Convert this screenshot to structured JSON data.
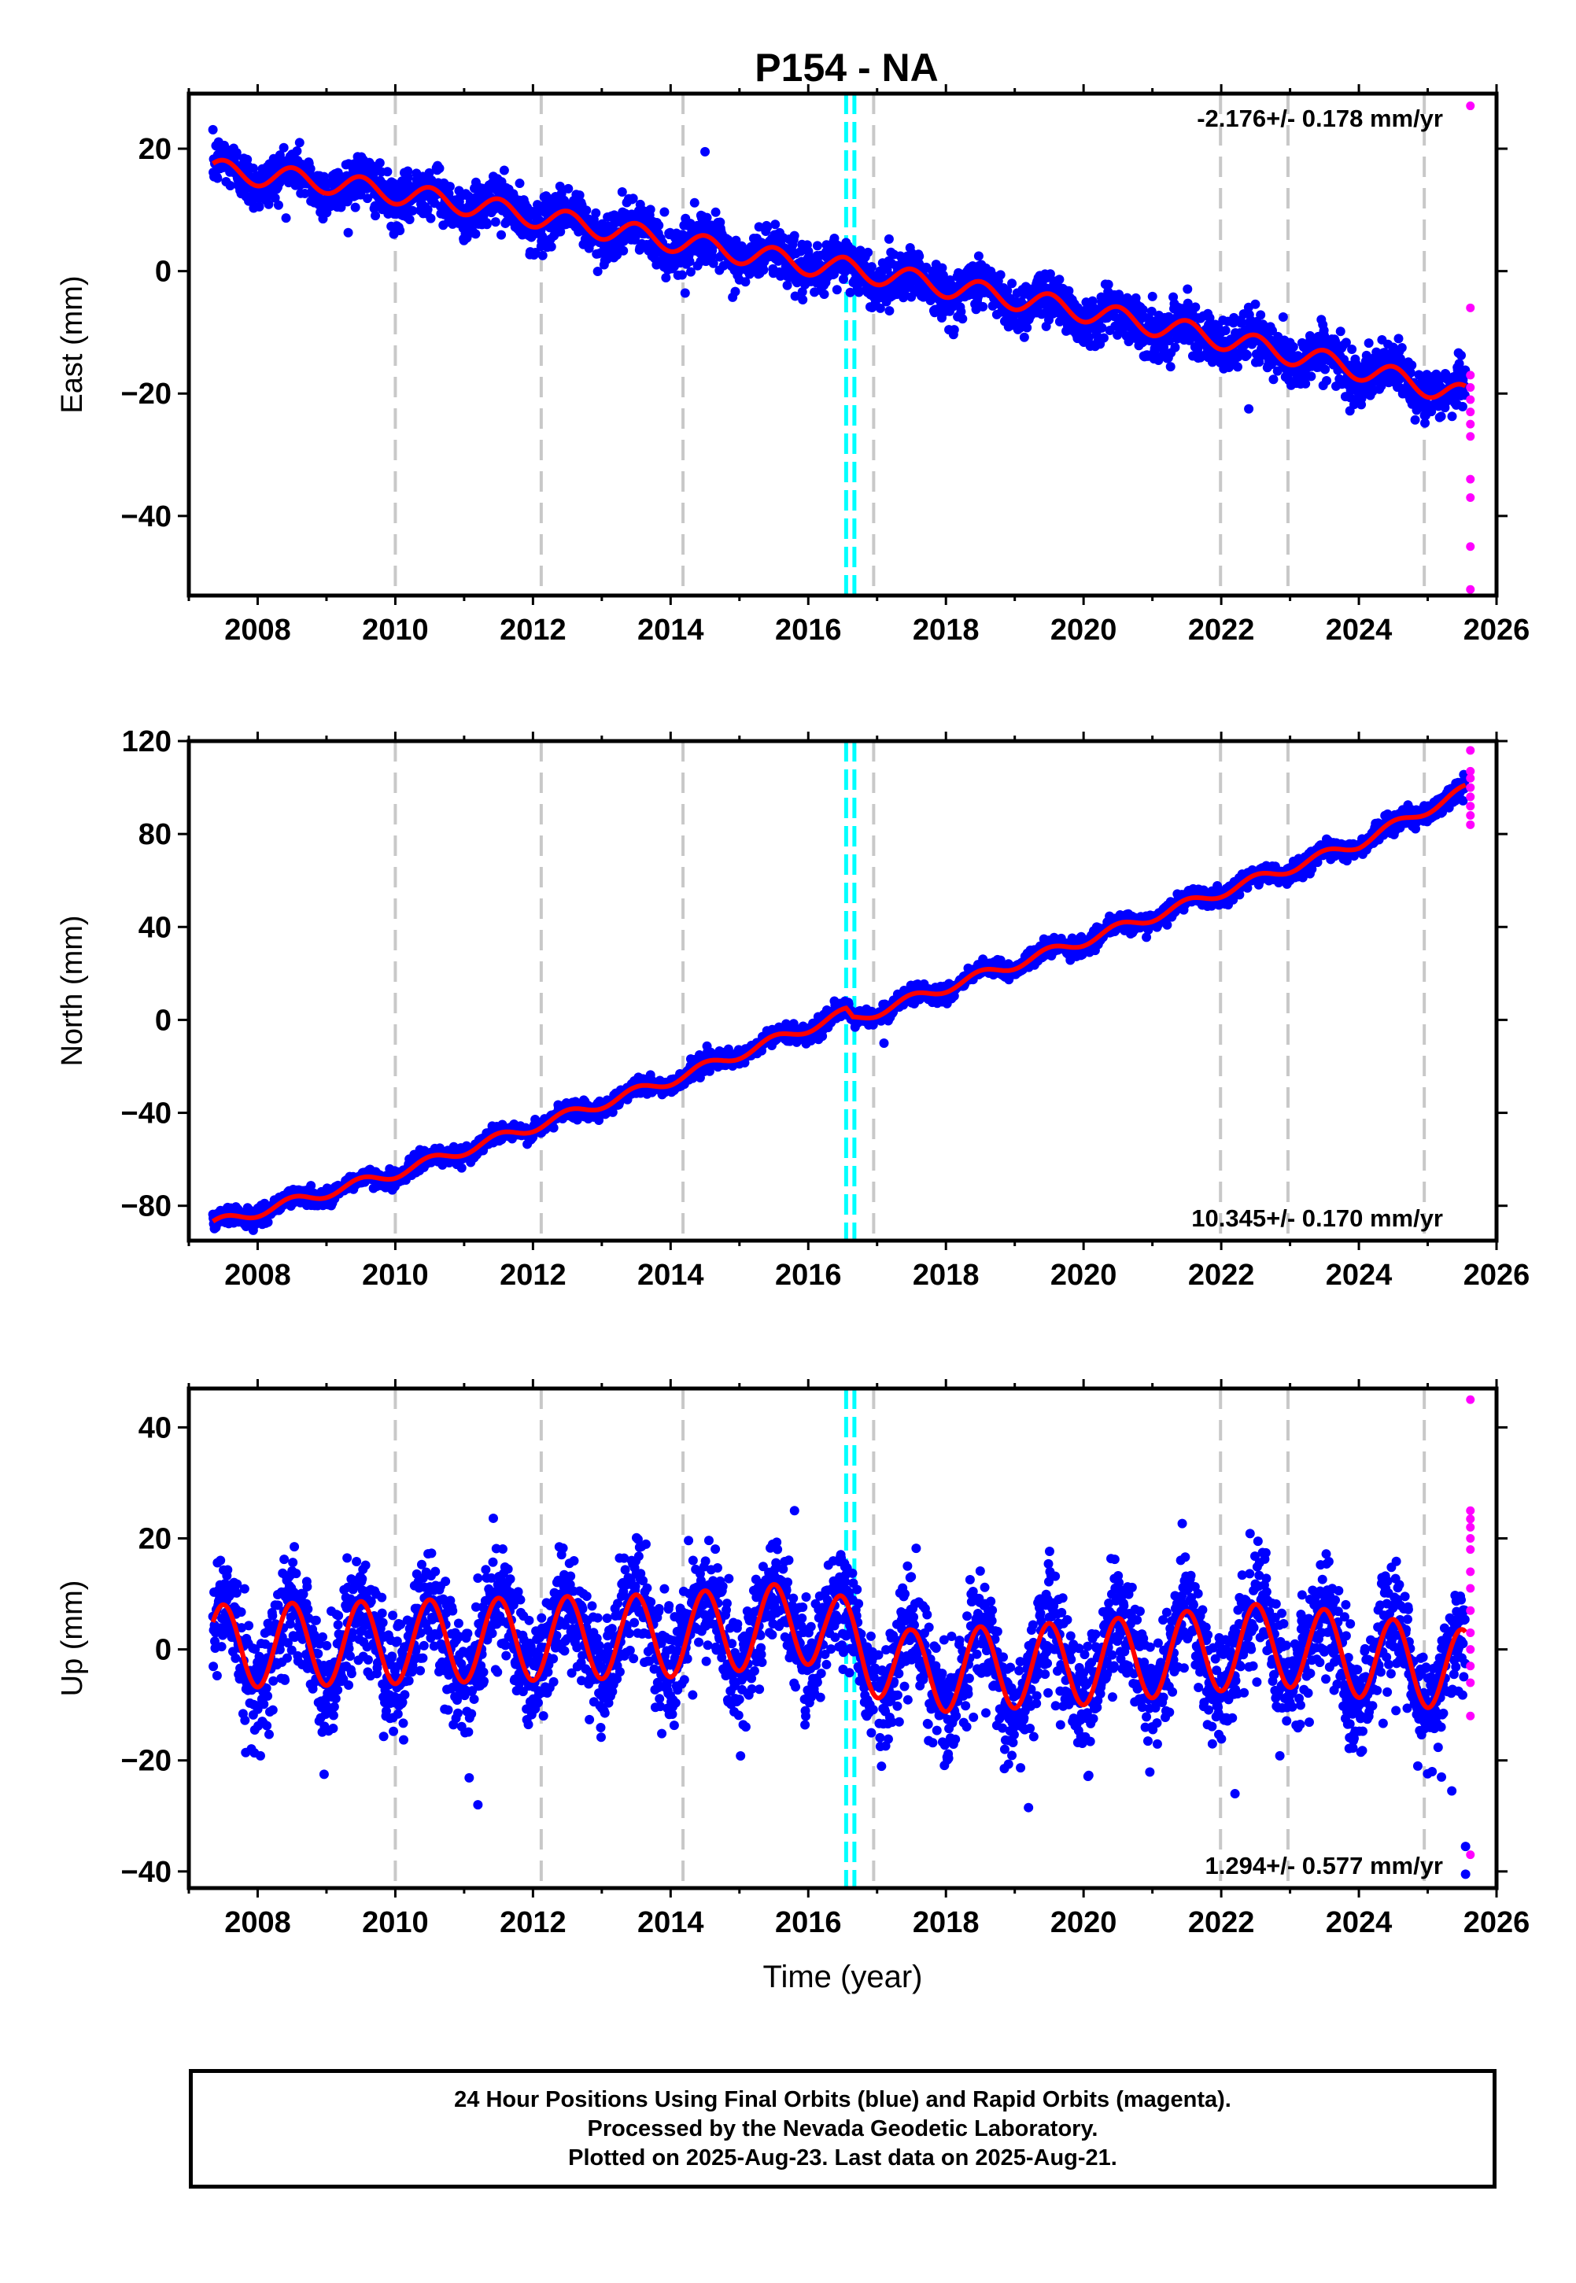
{
  "colors": {
    "final_orbits": "#0000ff",
    "rapid_orbits": "#ff00ff",
    "model": "#ff0000",
    "gray_lines": "#c8c8c8",
    "cyan_lines": "#00ffff"
  },
  "chart_data": [
    {
      "type": "scatter",
      "panel": "east",
      "title": "P154 - NA",
      "ylabel": "East (mm)",
      "xlabel": "",
      "xlim": [
        2007.0,
        2026.0
      ],
      "ylim": [
        -53,
        29
      ],
      "yticks": [
        20,
        0,
        -20,
        -40
      ],
      "ytick_labels": [
        "20",
        "0",
        "−20",
        "−40"
      ],
      "xticks": [
        2008,
        2010,
        2012,
        2014,
        2016,
        2018,
        2020,
        2022,
        2024,
        2026
      ],
      "xtick_labels": [
        "2008",
        "2010",
        "2012",
        "2014",
        "2016",
        "2018",
        "2020",
        "2022",
        "2024",
        "2026"
      ],
      "rate_label": "-2.176+/- 0.178 mm/yr",
      "rate_position": "top-right",
      "start": 2007.35,
      "end": 2025.55,
      "trend": [
        {
          "x": 2007.35,
          "y": 16.5
        },
        {
          "x": 2009.0,
          "y": 14.5
        },
        {
          "x": 2011.0,
          "y": 11.0
        },
        {
          "x": 2013.0,
          "y": 7.0
        },
        {
          "x": 2015.0,
          "y": 3.0
        },
        {
          "x": 2016.35,
          "y": 0.5
        },
        {
          "x": 2016.55,
          "y": 0.5
        },
        {
          "x": 2018.0,
          "y": -2.5
        },
        {
          "x": 2020.0,
          "y": -6.5
        },
        {
          "x": 2022.0,
          "y": -11.0
        },
        {
          "x": 2024.0,
          "y": -16.0
        },
        {
          "x": 2024.9,
          "y": -18.5
        },
        {
          "x": 2025.55,
          "y": -20.5
        }
      ],
      "seasonal_amplitude": 1.8,
      "scatter": 2.0,
      "outliers": [
        {
          "x": 2014.5,
          "y": 19.5
        },
        {
          "x": 2022.9,
          "y": -7.5
        },
        {
          "x": 2022.4,
          "y": -22.5
        }
      ],
      "rapid_points": [
        {
          "x": 2025.62,
          "y": 27
        },
        {
          "x": 2025.62,
          "y": -6
        },
        {
          "x": 2025.62,
          "y": -17
        },
        {
          "x": 2025.62,
          "y": -19
        },
        {
          "x": 2025.62,
          "y": -21
        },
        {
          "x": 2025.62,
          "y": -23
        },
        {
          "x": 2025.62,
          "y": -25
        },
        {
          "x": 2025.62,
          "y": -27
        },
        {
          "x": 2025.62,
          "y": -34
        },
        {
          "x": 2025.62,
          "y": -37
        },
        {
          "x": 2025.62,
          "y": -45
        },
        {
          "x": 2025.62,
          "y": -52
        }
      ],
      "gray_lines": [
        2010.0,
        2012.12,
        2014.18,
        2016.95,
        2021.99,
        2022.97,
        2024.95
      ],
      "cyan_lines": [
        2016.55,
        2016.67
      ]
    },
    {
      "type": "scatter",
      "panel": "north",
      "title": "",
      "ylabel": "North (mm)",
      "xlabel": "",
      "xlim": [
        2007.0,
        2026.0
      ],
      "ylim": [
        -95,
        120
      ],
      "yticks": [
        120,
        80,
        40,
        0,
        -40,
        -80
      ],
      "ytick_labels": [
        "120",
        "80",
        "40",
        "0",
        "−40",
        "−80"
      ],
      "xticks": [
        2008,
        2010,
        2012,
        2014,
        2016,
        2018,
        2020,
        2022,
        2024,
        2026
      ],
      "xtick_labels": [
        "2008",
        "2010",
        "2012",
        "2014",
        "2016",
        "2018",
        "2020",
        "2022",
        "2024",
        "2026"
      ],
      "rate_label": "10.345+/- 0.170 mm/yr",
      "rate_position": "bottom-right",
      "start": 2007.35,
      "end": 2025.55,
      "trend": [
        {
          "x": 2007.35,
          "y": -88.0
        },
        {
          "x": 2010.0,
          "y": -66.0
        },
        {
          "x": 2012.0,
          "y": -46.0
        },
        {
          "x": 2014.0,
          "y": -26.0
        },
        {
          "x": 2016.55,
          "y": 3.0
        },
        {
          "x": 2016.65,
          "y": 0.0
        },
        {
          "x": 2018.0,
          "y": 14.0
        },
        {
          "x": 2020.0,
          "y": 34.0
        },
        {
          "x": 2022.0,
          "y": 55.0
        },
        {
          "x": 2024.0,
          "y": 76.0
        },
        {
          "x": 2025.55,
          "y": 99.0
        }
      ],
      "seasonal_amplitude": 2.2,
      "scatter": 1.8,
      "outliers": [
        {
          "x": 2017.1,
          "y": -10.0
        }
      ],
      "rapid_points": [
        {
          "x": 2025.62,
          "y": 116
        },
        {
          "x": 2025.62,
          "y": 107
        },
        {
          "x": 2025.62,
          "y": 104
        },
        {
          "x": 2025.62,
          "y": 100
        },
        {
          "x": 2025.62,
          "y": 96
        },
        {
          "x": 2025.62,
          "y": 92
        },
        {
          "x": 2025.62,
          "y": 88
        },
        {
          "x": 2025.62,
          "y": 84
        }
      ],
      "gray_lines": [
        2010.0,
        2012.12,
        2014.18,
        2016.95,
        2021.99,
        2022.97,
        2024.95
      ],
      "cyan_lines": [
        2016.55,
        2016.67
      ]
    },
    {
      "type": "scatter",
      "panel": "up",
      "title": "",
      "ylabel": "Up (mm)",
      "xlabel": "Time (year)",
      "xlim": [
        2007.0,
        2026.0
      ],
      "ylim": [
        -43,
        47
      ],
      "yticks": [
        40,
        20,
        0,
        -20,
        -40
      ],
      "ytick_labels": [
        "40",
        "20",
        "0",
        "−20",
        "−40"
      ],
      "xticks": [
        2008,
        2010,
        2012,
        2014,
        2016,
        2018,
        2020,
        2022,
        2024,
        2026
      ],
      "xtick_labels": [
        "2008",
        "2010",
        "2012",
        "2014",
        "2016",
        "2018",
        "2020",
        "2022",
        "2024",
        "2026"
      ],
      "rate_label": "1.294+/- 0.577 mm/yr",
      "rate_position": "bottom-right",
      "start": 2007.35,
      "end": 2025.55,
      "trend": [
        {
          "x": 2007.35,
          "y": 0.5
        },
        {
          "x": 2014.0,
          "y": 2.5
        },
        {
          "x": 2016.2,
          "y": 5.0
        },
        {
          "x": 2016.6,
          "y": 1.0
        },
        {
          "x": 2017.5,
          "y": -4.0
        },
        {
          "x": 2020.0,
          "y": -2.5
        },
        {
          "x": 2022.8,
          "y": 1.0
        },
        {
          "x": 2025.55,
          "y": -4.0
        }
      ],
      "seasonal_amplitude": 7.5,
      "scatter": 5.0,
      "outliers": [
        {
          "x": 2011.2,
          "y": -28.0
        },
        {
          "x": 2019.2,
          "y": -28.5
        },
        {
          "x": 2022.2,
          "y": -26.0
        },
        {
          "x": 2025.2,
          "y": -23.0
        },
        {
          "x": 2025.35,
          "y": -25.5
        },
        {
          "x": 2025.55,
          "y": -35.5
        },
        {
          "x": 2025.55,
          "y": -40.5
        },
        {
          "x": 2015.8,
          "y": 25.0
        }
      ],
      "rapid_points": [
        {
          "x": 2025.62,
          "y": 45
        },
        {
          "x": 2025.62,
          "y": 25
        },
        {
          "x": 2025.62,
          "y": 23.5
        },
        {
          "x": 2025.62,
          "y": 22
        },
        {
          "x": 2025.62,
          "y": 20
        },
        {
          "x": 2025.62,
          "y": 18
        },
        {
          "x": 2025.62,
          "y": 14
        },
        {
          "x": 2025.62,
          "y": 11
        },
        {
          "x": 2025.62,
          "y": 7
        },
        {
          "x": 2025.62,
          "y": 3
        },
        {
          "x": 2025.62,
          "y": 0
        },
        {
          "x": 2025.62,
          "y": -3
        },
        {
          "x": 2025.62,
          "y": -6
        },
        {
          "x": 2025.62,
          "y": -12
        },
        {
          "x": 2025.62,
          "y": -37
        }
      ],
      "gray_lines": [
        2010.0,
        2012.12,
        2014.18,
        2016.95,
        2021.99,
        2022.97,
        2024.95
      ],
      "cyan_lines": [
        2016.55,
        2016.67
      ]
    }
  ],
  "footer": {
    "line1": "24 Hour Positions Using Final Orbits (blue) and Rapid Orbits (magenta).",
    "line2": "Processed by the Nevada Geodetic Laboratory.",
    "line3": "Plotted on 2025-Aug-23. Last data on 2025-Aug-21."
  }
}
